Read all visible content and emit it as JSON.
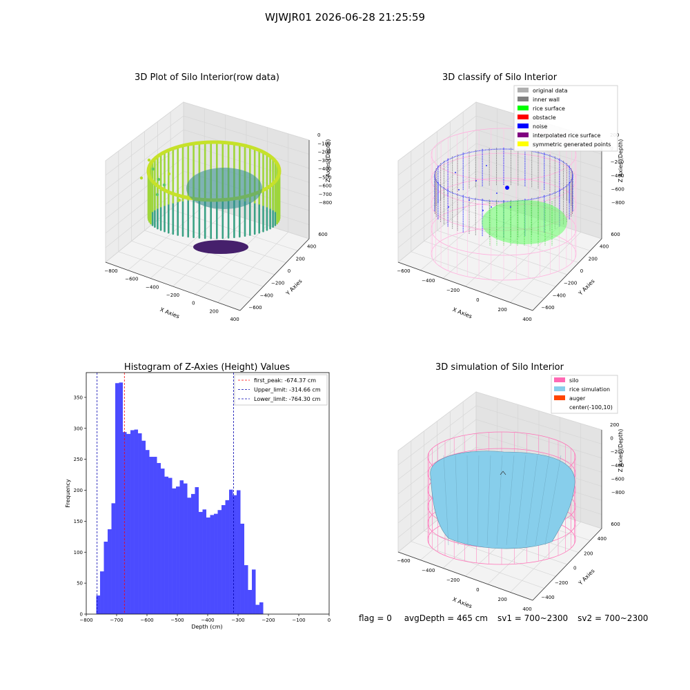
{
  "figure": {
    "suptitle": "WJWJR01 2026-06-28 21:25:59"
  },
  "panels": {
    "raw": {
      "title": "3D Plot of Silo Interior(row data)",
      "xlabel": "X Axies",
      "ylabel": "Y Axies",
      "zlabel": "Z Axies (Depth)",
      "xticks": [
        "−800",
        "−600",
        "−400",
        "−200",
        "0",
        "200",
        "400"
      ],
      "yticks": [
        "−600",
        "−400",
        "−200",
        "0",
        "200",
        "400",
        "600"
      ],
      "zticks": [
        "0",
        "−100",
        "−200",
        "−300",
        "−400",
        "−500",
        "−600",
        "−700",
        "−800"
      ],
      "colormap": "viridis"
    },
    "classify": {
      "title": "3D classify of Silo Interior",
      "xlabel": "X Axies",
      "ylabel": "Y Axies",
      "zlabel": "Z Axies (Depth)",
      "xticks": [
        "−600",
        "−400",
        "−200",
        "0",
        "200",
        "400"
      ],
      "yticks": [
        "−600",
        "−400",
        "−200",
        "0",
        "200",
        "400",
        "600"
      ],
      "zticks": [
        "200",
        "0",
        "−200",
        "−400",
        "−600",
        "−800"
      ],
      "legend": [
        {
          "label": "original data",
          "color": "#b0b0b0"
        },
        {
          "label": "inner wall",
          "color": "#808080"
        },
        {
          "label": "rice surface",
          "color": "#00ff00"
        },
        {
          "label": "obstacle",
          "color": "#ff0000"
        },
        {
          "label": "noise",
          "color": "#0000ff"
        },
        {
          "label": "interpolated rice surface",
          "color": "#800080"
        },
        {
          "label": "symmetric generated points",
          "color": "#ffff00"
        }
      ]
    },
    "simulation": {
      "title": "3D simulation of Silo Interior",
      "xlabel": "X Axies",
      "ylabel": "Y Axies",
      "zlabel": "Z Axies (Depth)",
      "xticks": [
        "−600",
        "−400",
        "−200",
        "0",
        "200",
        "400"
      ],
      "yticks": [
        "−400",
        "−200",
        "0",
        "200",
        "400",
        "600"
      ],
      "zticks": [
        "200",
        "0",
        "−200",
        "−400",
        "−600",
        "−800"
      ],
      "legend": [
        {
          "label": "silo",
          "color": "#ff69b4"
        },
        {
          "label": "rice simulation",
          "color": "#87ceeb"
        },
        {
          "label": "auger",
          "color": "#ff4500"
        },
        {
          "label": "center(-100,10)",
          "color": ""
        }
      ]
    }
  },
  "status": {
    "flag": "flag = 0",
    "avg": "avgDepth = 465 cm",
    "sv1": "sv1 = 700~2300",
    "sv2": "sv2 = 700~2300"
  },
  "chart_data": [
    {
      "type": "bar",
      "title": "Histogram of Z-Axies (Height) Values",
      "xlabel": "Depth (cm)",
      "ylabel": "Frequency",
      "xlim": [
        -800,
        0
      ],
      "ylim": [
        0,
        390
      ],
      "xticks": [
        -800,
        -700,
        -600,
        -500,
        -400,
        -300,
        -200,
        -100,
        0
      ],
      "yticks": [
        0,
        50,
        100,
        150,
        200,
        250,
        300,
        350
      ],
      "bin_start": -767,
      "bin_width": 12.5,
      "color": "#4b4bff",
      "values": [
        30,
        69,
        117,
        137,
        179,
        373,
        374,
        294,
        291,
        297,
        298,
        292,
        280,
        265,
        254,
        254,
        244,
        235,
        222,
        220,
        203,
        206,
        216,
        211,
        188,
        194,
        205,
        165,
        169,
        156,
        160,
        162,
        168,
        176,
        184,
        201,
        192,
        200,
        146,
        79,
        39,
        72,
        15,
        19
      ],
      "vlines": [
        {
          "label": "first_peak: -674.37 cm",
          "x": -674.37,
          "color": "#ff0000"
        },
        {
          "label": "Upper_limit: -314.66 cm",
          "x": -314.66,
          "color": "#0000b0"
        },
        {
          "label": "Lower_limit: -764.30 cm",
          "x": -764.3,
          "color": "#0000b0"
        }
      ],
      "legend": "top-right"
    }
  ]
}
